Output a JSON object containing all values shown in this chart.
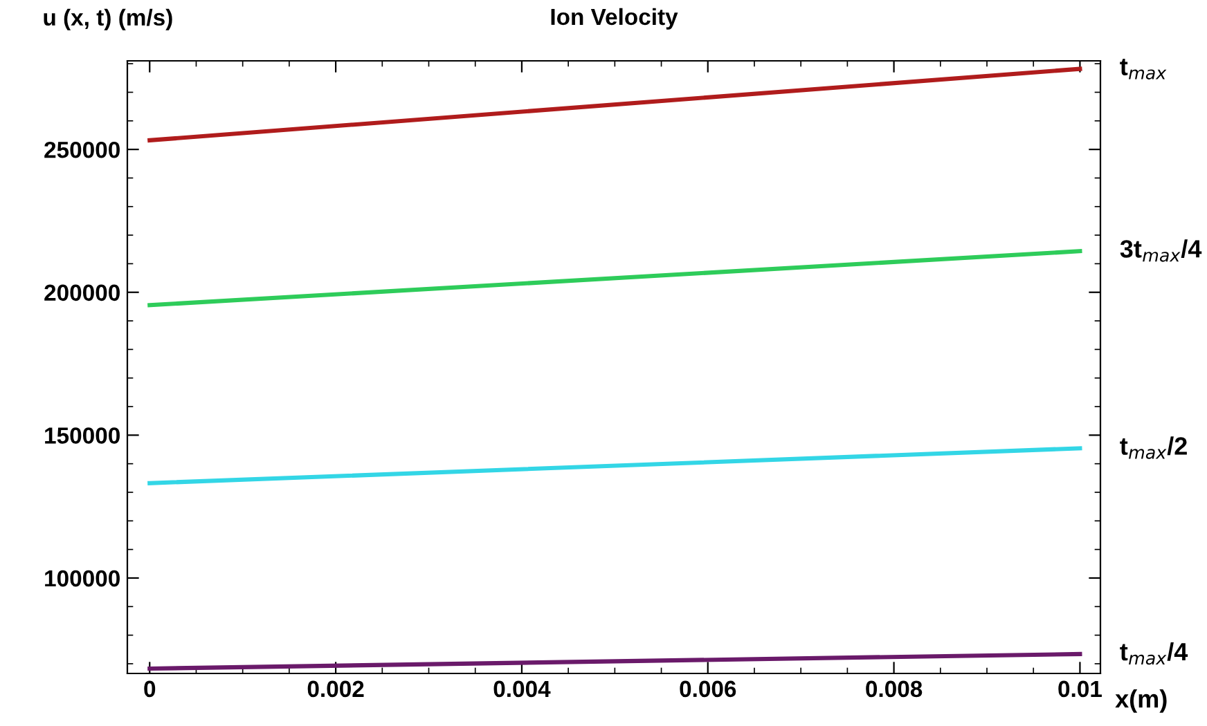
{
  "chart_data": {
    "type": "line",
    "title": "Ion Velocity",
    "xlabel": "x(m)",
    "ylabel": "u (x, t) (m/s)",
    "x": [
      0,
      0.01
    ],
    "series": [
      {
        "name": "t$_{max}$",
        "color": "#b01c1c",
        "values": [
          253200,
          278200
        ]
      },
      {
        "name": "3t$_{max}$/4",
        "color": "#2ecc5a",
        "values": [
          195500,
          214400
        ]
      },
      {
        "name": "t$_{max}$/2",
        "color": "#33d6e6",
        "values": [
          133200,
          145400
        ]
      },
      {
        "name": "t$_{max}$/4",
        "color": "#6a1a6a",
        "values": [
          68300,
          73400
        ]
      }
    ],
    "xlim": [
      -0.00024,
      0.01022
    ],
    "ylim": [
      66600,
      281000
    ],
    "xticks": [
      0,
      0.002,
      0.004,
      0.006,
      0.008,
      0.01
    ],
    "yticks": [
      100000,
      150000,
      200000,
      250000
    ],
    "grid": false,
    "legend": false,
    "marker": "none",
    "line_style": "solid"
  }
}
